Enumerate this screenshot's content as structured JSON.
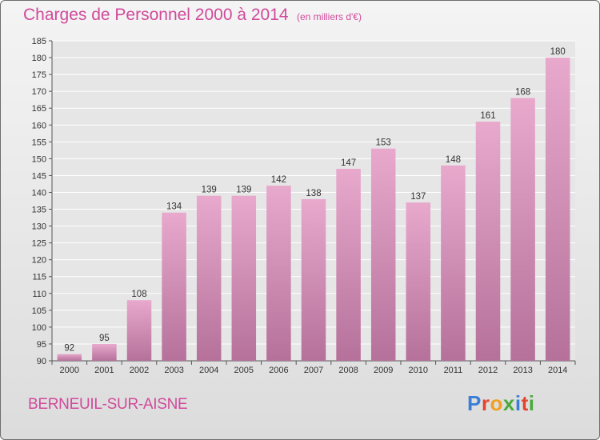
{
  "header": {
    "title": "Charges de Personnel 2000 à 2014",
    "subtitle": "(en milliers d'€)"
  },
  "footer": {
    "commune": "BERNEUIL-SUR-AISNE",
    "logo": "Proxiti"
  },
  "colors": {
    "accent": "#d04a9b",
    "bar_top": "#e8a9cd",
    "bar_bottom": "#b5719a",
    "logo_letters": [
      "#3a7fd6",
      "#e0462f",
      "#f0a020",
      "#4aaa3c",
      "#3a7fd6",
      "#e0462f",
      "#4aaa3c"
    ]
  },
  "chart_data": {
    "type": "bar",
    "title": "Charges de Personnel 2000 à 2014",
    "subtitle": "(en milliers d'€)",
    "categories": [
      "2000",
      "2001",
      "2002",
      "2003",
      "2004",
      "2005",
      "2006",
      "2007",
      "2008",
      "2009",
      "2010",
      "2011",
      "2012",
      "2013",
      "2014"
    ],
    "values": [
      92,
      95,
      108,
      134,
      139,
      139,
      142,
      138,
      147,
      153,
      137,
      148,
      161,
      168,
      180
    ],
    "ylim": [
      90,
      185
    ],
    "yticks": [
      90,
      95,
      100,
      105,
      110,
      115,
      120,
      125,
      130,
      135,
      140,
      145,
      150,
      155,
      160,
      165,
      170,
      175,
      180,
      185
    ],
    "grid": true,
    "legend": "none"
  }
}
